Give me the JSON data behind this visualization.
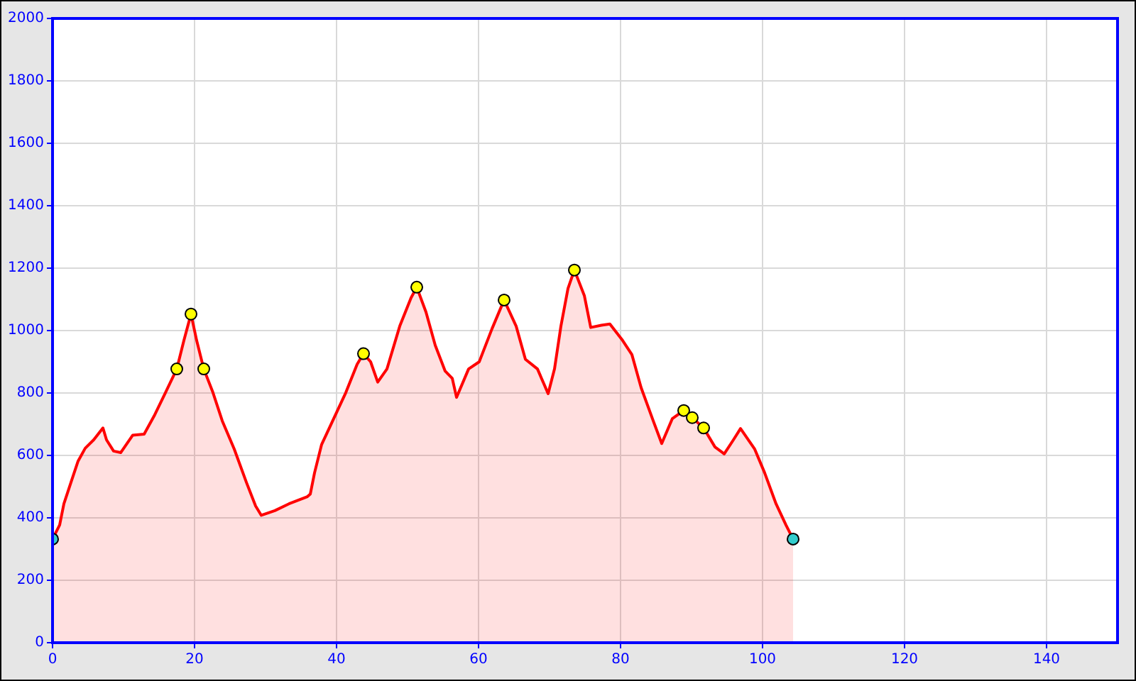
{
  "chart_data": {
    "type": "area",
    "xlim": [
      0,
      150
    ],
    "ylim": [
      0,
      2000
    ],
    "xticks": [
      0,
      20,
      40,
      60,
      80,
      100,
      120,
      140
    ],
    "yticks": [
      0,
      200,
      400,
      600,
      800,
      1000,
      1200,
      1400,
      1600,
      1800,
      2000
    ],
    "grid": true,
    "legend": false,
    "series": [
      {
        "color": "#ff0000",
        "marker": "none",
        "x": [
          0,
          1,
          1.6,
          2.6,
          3.6,
          4.6,
          5.8,
          7.1,
          7.6,
          8.6,
          9.6,
          11.3,
          12.9,
          14.3,
          15.9,
          17.5,
          18.5,
          19.5,
          20.3,
          21.3,
          22.6,
          23.9,
          25.6,
          27.3,
          28.6,
          29.4,
          31.3,
          33.3,
          35.9,
          36.3,
          36.9,
          37.9,
          39.6,
          41.3,
          42.9,
          43.8,
          44.8,
          45.8,
          47.1,
          48.9,
          50.5,
          51.3,
          52.6,
          53.9,
          55.3,
          56.3,
          56.9,
          58.6,
          60.1,
          61.9,
          63.6,
          65.3,
          66.6,
          68.3,
          69.8,
          70.7,
          71.6,
          72.6,
          73.5,
          74.9,
          75.8,
          77.3,
          78.5,
          80.3,
          81.6,
          82.9,
          84.6,
          85.8,
          87.3,
          88.9,
          90.1,
          91.7,
          93.3,
          94.6,
          95.9,
          96.9,
          98.9,
          100.3,
          101.9,
          103.3,
          104.3
        ],
        "values": [
          332,
          377,
          445,
          514,
          582,
          623,
          650,
          688,
          650,
          614,
          609,
          665,
          668,
          726,
          801,
          877,
          968,
          1053,
          968,
          877,
          801,
          711,
          620,
          514,
          438,
          408,
          423,
          445,
          468,
          476,
          544,
          635,
          718,
          801,
          892,
          926,
          900,
          835,
          877,
          1014,
          1105,
          1139,
          1059,
          953,
          870,
          847,
          786,
          877,
          900,
          1006,
          1098,
          1014,
          908,
          877,
          798,
          877,
          1014,
          1135,
          1194,
          1112,
          1010,
          1017,
          1021,
          968,
          923,
          817,
          711,
          638,
          718,
          744,
          721,
          688,
          627,
          605,
          650,
          686,
          620,
          544,
          445,
          377,
          332
        ]
      },
      {
        "type": "scatter",
        "color": "#ffff00",
        "marker": "circle",
        "x": [
          17.5,
          19.5,
          21.3,
          43.8,
          51.3,
          63.6,
          73.5,
          88.9,
          90.1,
          91.7
        ],
        "values": [
          877,
          1053,
          877,
          926,
          1139,
          1098,
          1194,
          744,
          721,
          688
        ]
      },
      {
        "type": "scatter",
        "color": "#33cccc",
        "marker": "circle",
        "x": [
          0,
          104.3
        ],
        "values": [
          332,
          332
        ]
      }
    ]
  }
}
